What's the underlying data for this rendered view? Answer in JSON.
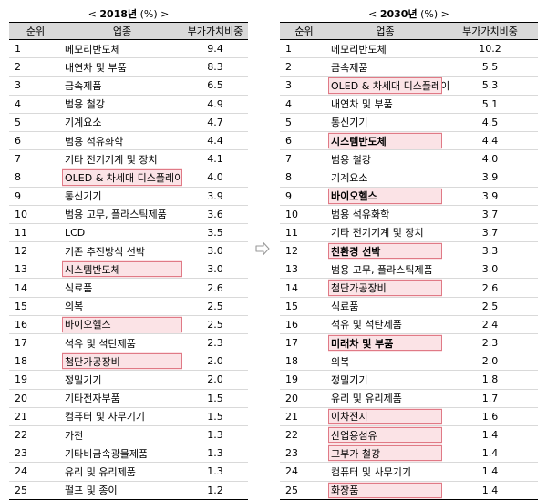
{
  "left": {
    "caption_open": "<",
    "caption_year": "2018년",
    "caption_unit": "(%)",
    "caption_close": ">",
    "headers": [
      "순위",
      "업종",
      "부가가치비중"
    ],
    "rows": [
      {
        "rank": "1",
        "industry": "메모리반도체",
        "value": "9.4",
        "highlight": false,
        "bold": false
      },
      {
        "rank": "2",
        "industry": "내연차 및 부품",
        "value": "8.3",
        "highlight": false,
        "bold": false
      },
      {
        "rank": "3",
        "industry": "금속제품",
        "value": "6.5",
        "highlight": false,
        "bold": false
      },
      {
        "rank": "4",
        "industry": "범용 철강",
        "value": "4.9",
        "highlight": false,
        "bold": false
      },
      {
        "rank": "5",
        "industry": "기계요소",
        "value": "4.7",
        "highlight": false,
        "bold": false
      },
      {
        "rank": "6",
        "industry": "범용 석유화학",
        "value": "4.4",
        "highlight": false,
        "bold": false
      },
      {
        "rank": "7",
        "industry": "기타 전기기계 및 장치",
        "value": "4.1",
        "highlight": false,
        "bold": false
      },
      {
        "rank": "8",
        "industry": "OLED & 차세대 디스플레이",
        "value": "4.0",
        "highlight": true,
        "bold": false
      },
      {
        "rank": "9",
        "industry": "통신기기",
        "value": "3.9",
        "highlight": false,
        "bold": false
      },
      {
        "rank": "10",
        "industry": "범용 고무, 플라스틱제품",
        "value": "3.6",
        "highlight": false,
        "bold": false
      },
      {
        "rank": "11",
        "industry": "LCD",
        "value": "3.5",
        "highlight": false,
        "bold": false
      },
      {
        "rank": "12",
        "industry": "기존 추진방식 선박",
        "value": "3.0",
        "highlight": false,
        "bold": false
      },
      {
        "rank": "13",
        "industry": "시스템반도체",
        "value": "3.0",
        "highlight": true,
        "bold": false
      },
      {
        "rank": "14",
        "industry": "식료품",
        "value": "2.6",
        "highlight": false,
        "bold": false
      },
      {
        "rank": "15",
        "industry": "의복",
        "value": "2.5",
        "highlight": false,
        "bold": false
      },
      {
        "rank": "16",
        "industry": "바이오헬스",
        "value": "2.5",
        "highlight": true,
        "bold": false
      },
      {
        "rank": "17",
        "industry": "석유 및 석탄제품",
        "value": "2.3",
        "highlight": false,
        "bold": false
      },
      {
        "rank": "18",
        "industry": "첨단가공장비",
        "value": "2.0",
        "highlight": true,
        "bold": false
      },
      {
        "rank": "19",
        "industry": "정밀기기",
        "value": "2.0",
        "highlight": false,
        "bold": false
      },
      {
        "rank": "20",
        "industry": "기타전자부품",
        "value": "1.5",
        "highlight": false,
        "bold": false
      },
      {
        "rank": "21",
        "industry": "컴퓨터 및 사무기기",
        "value": "1.5",
        "highlight": false,
        "bold": false
      },
      {
        "rank": "22",
        "industry": "가전",
        "value": "1.3",
        "highlight": false,
        "bold": false
      },
      {
        "rank": "23",
        "industry": "기타비금속광물제품",
        "value": "1.3",
        "highlight": false,
        "bold": false
      },
      {
        "rank": "24",
        "industry": "유리 및 유리제품",
        "value": "1.3",
        "highlight": false,
        "bold": false
      },
      {
        "rank": "25",
        "industry": "펄프 및 종이",
        "value": "1.2",
        "highlight": false,
        "bold": false
      }
    ]
  },
  "right": {
    "caption_open": "<",
    "caption_year": "2030년",
    "caption_unit": "(%)",
    "caption_close": ">",
    "headers": [
      "순위",
      "업종",
      "부가가치비중"
    ],
    "rows": [
      {
        "rank": "1",
        "industry": "메모리반도체",
        "value": "10.2",
        "highlight": false,
        "bold": false
      },
      {
        "rank": "2",
        "industry": "금속제품",
        "value": "5.5",
        "highlight": false,
        "bold": false
      },
      {
        "rank": "3",
        "industry": "OLED & 차세대 디스플레이",
        "value": "5.3",
        "highlight": true,
        "bold": false
      },
      {
        "rank": "4",
        "industry": "내연차 및 부품",
        "value": "5.1",
        "highlight": false,
        "bold": false
      },
      {
        "rank": "5",
        "industry": "통신기기",
        "value": "4.5",
        "highlight": false,
        "bold": false
      },
      {
        "rank": "6",
        "industry": "시스템반도체",
        "value": "4.4",
        "highlight": true,
        "bold": true
      },
      {
        "rank": "7",
        "industry": "범용 철강",
        "value": "4.0",
        "highlight": false,
        "bold": false
      },
      {
        "rank": "8",
        "industry": "기계요소",
        "value": "3.9",
        "highlight": false,
        "bold": false
      },
      {
        "rank": "9",
        "industry": "바이오헬스",
        "value": "3.9",
        "highlight": true,
        "bold": true
      },
      {
        "rank": "10",
        "industry": "범용 석유화학",
        "value": "3.7",
        "highlight": false,
        "bold": false
      },
      {
        "rank": "11",
        "industry": "기타 전기기계 및 장치",
        "value": "3.7",
        "highlight": false,
        "bold": false
      },
      {
        "rank": "12",
        "industry": "친환경 선박",
        "value": "3.3",
        "highlight": true,
        "bold": true
      },
      {
        "rank": "13",
        "industry": "범용 고무, 플라스틱제품",
        "value": "3.0",
        "highlight": false,
        "bold": false
      },
      {
        "rank": "14",
        "industry": "첨단가공장비",
        "value": "2.6",
        "highlight": true,
        "bold": false
      },
      {
        "rank": "15",
        "industry": "식료품",
        "value": "2.5",
        "highlight": false,
        "bold": false
      },
      {
        "rank": "16",
        "industry": "석유 및 석탄제품",
        "value": "2.4",
        "highlight": false,
        "bold": false
      },
      {
        "rank": "17",
        "industry": "미래차 및 부품",
        "value": "2.3",
        "highlight": true,
        "bold": true
      },
      {
        "rank": "18",
        "industry": "의복",
        "value": "2.0",
        "highlight": false,
        "bold": false
      },
      {
        "rank": "19",
        "industry": "정밀기기",
        "value": "1.8",
        "highlight": false,
        "bold": false
      },
      {
        "rank": "20",
        "industry": "유리 및 유리제품",
        "value": "1.7",
        "highlight": false,
        "bold": false
      },
      {
        "rank": "21",
        "industry": "이차전지",
        "value": "1.6",
        "highlight": true,
        "bold": false
      },
      {
        "rank": "22",
        "industry": "산업용섬유",
        "value": "1.4",
        "highlight": true,
        "bold": false
      },
      {
        "rank": "23",
        "industry": "고부가 철강",
        "value": "1.4",
        "highlight": true,
        "bold": false
      },
      {
        "rank": "24",
        "industry": "컴퓨터 및 사무기기",
        "value": "1.4",
        "highlight": false,
        "bold": false
      },
      {
        "rank": "25",
        "industry": "화장품",
        "value": "1.4",
        "highlight": true,
        "bold": false
      }
    ]
  },
  "colors": {
    "header_bg": "#d9d9d9",
    "highlight_fill": "#fbe3e6",
    "highlight_border": "#e07a86",
    "arrow": "#999999"
  },
  "icons": {
    "transition": "right-arrow-icon"
  }
}
